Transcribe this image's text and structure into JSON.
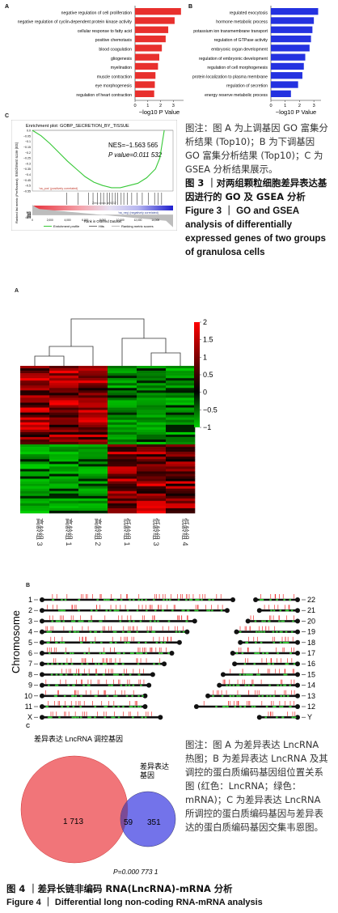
{
  "fig3": {
    "panel_a_letter": "A",
    "panel_b_letter": "B",
    "panel_c_letter": "C",
    "up_terms": [
      "negative regulation of cell proliferation",
      "negative regulation of cyclin-dependent protein kinase activity",
      "cellular response to fatty acid",
      "positive chemotaxis",
      "blood coagulation",
      "gliogenesis",
      "myelination",
      "muscle contraction",
      "eye morphogenesis",
      "regulation of heart contraction"
    ],
    "down_terms": [
      "regulated exocytosis",
      "hormone metabolic process",
      "potassium ion transmembrane transport",
      "regulation of GTPase activity",
      "embryonic organ development",
      "regulation of embryonic development",
      "regulation of cell morphogenesis",
      "protein localization to plasma membrane",
      "regulation of secretion",
      "energy reserve metabolic process"
    ],
    "axis_ticks": [
      "0",
      "1",
      "2",
      "3"
    ],
    "axis_label": "−log10 P Value",
    "gsea_title": "Enrichment plot: GOBP_SECRETION_BY_TISSUE",
    "gsea_nes": "NES=−1.563 565",
    "gsea_p": "P value=0.011 532",
    "gsea_es_ylabel": "Enrichment score (ES)",
    "gsea_rank_ylabel": "Ranked list metric (PreRanked)",
    "gsea_xlabel": "Rank in Ordered Dataset",
    "gsea_pos_label": "'na_pos' (positively correlated)",
    "gsea_neg_label": "'na_neg' (negatively correlated)",
    "gsea_zero_label": "Zero cross at 9217",
    "gsea_es_ticks": [
      "0.0",
      "−0.05",
      "−0.1",
      "−0.15",
      "−0.2",
      "−0.25",
      "−0.3",
      "−0.35",
      "−0.4",
      "−0.45",
      "−0.5",
      "−0.55"
    ],
    "gsea_rank_ticks": [
      "12.5",
      "10.0",
      "7.5",
      "5.0",
      "2.5",
      "0.0",
      "−2.5",
      "−5.0",
      "−7.5",
      "−10.0",
      "−12.5"
    ],
    "gsea_x_ticks": [
      "0",
      "2,000",
      "4,000",
      "6,000",
      "8,000",
      "10,000",
      "12,000",
      "14,000"
    ],
    "gsea_legend": [
      "Enrichment profile",
      "Hits",
      "Ranking metric scores"
    ],
    "caption_note": "图注：图 A 为上调基因 GO 富集分析结果 (Top10)；B 为下调基因 GO 富集分析结果 (Top10)；C 为 GSEA 分析结果展示。",
    "caption_cn": "图 3 ｜对两组颗粒细胞差异表达基因进行的 GO 及 GSEA 分析",
    "caption_en": "Figure 3 ｜ GO and GSEA analysis of differentially expressed genes of two groups of granulosa cells"
  },
  "fig4": {
    "panel_a_letter": "A",
    "panel_b_letter": "B",
    "panel_c_letter": "C",
    "heatmap_samples": [
      "高龄组 3",
      "高龄组 1",
      "高龄组 2",
      "低龄组 1",
      "低龄组 3",
      "低龄组 4"
    ],
    "colorbar_ticks": [
      "2",
      "1.5",
      "1",
      "0.5",
      "0",
      "−0.5",
      "−1"
    ],
    "chromosome_label": "Chromosome",
    "chrom_left": [
      "1",
      "2",
      "3",
      "4",
      "5",
      "6",
      "7",
      "8",
      "9",
      "10",
      "11",
      "X"
    ],
    "chrom_right": [
      "22",
      "21",
      "20",
      "19",
      "18",
      "17",
      "16",
      "15",
      "14",
      "13",
      "12",
      "Y"
    ],
    "venn_left_label": "差异表达 LncRNA 调控基因",
    "venn_right_label_1": "差异表达",
    "venn_right_label_2": "基因",
    "venn_left_only": "1 713",
    "venn_overlap": "59",
    "venn_right_only": "351",
    "venn_p": "P=0.000 773 1",
    "caption_note": "图注：图 A 为差异表达 LncRNA 热图；B 为差异表达 LncRNA 及其调控的蛋白质编码基因组位置关系图 (红色：LncRNA；绿色：mRNA)；C 为差异表达 LncRNA 所调控的蛋白质编码基因与差异表达的蛋白质编码基因交集韦恩图。",
    "caption_cn": "图 4 ｜差异长链非编码 RNA(LncRNA)-mRNA 分析",
    "caption_en": "Figure 4 ｜ Differential long non-coding RNA-mRNA analysis"
  },
  "chart_data": [
    {
      "type": "bar",
      "orientation": "horizontal",
      "categories": [
        "negative regulation of cell proliferation",
        "negative regulation of cyclin-dependent protein kinase activity",
        "cellular response to fatty acid",
        "positive chemotaxis",
        "blood coagulation",
        "gliogenesis",
        "myelination",
        "muscle contraction",
        "eye morphogenesis",
        "regulation of heart contraction"
      ],
      "values": [
        3.6,
        3.1,
        2.6,
        2.4,
        2.1,
        1.9,
        1.8,
        1.6,
        1.55,
        1.5
      ],
      "xlabel": "−log10 P Value",
      "xlim": [
        0,
        3.8
      ],
      "color": "#e8302d"
    },
    {
      "type": "bar",
      "orientation": "horizontal",
      "categories": [
        "regulated exocytosis",
        "hormone metabolic process",
        "potassium ion transmembrane transport",
        "regulation of GTPase activity",
        "embryonic organ development",
        "regulation of embryonic development",
        "regulation of cell morphogenesis",
        "protein localization to plasma membrane",
        "regulation of secretion",
        "energy reserve metabolic process"
      ],
      "values": [
        3.3,
        3.0,
        2.9,
        2.8,
        2.7,
        2.4,
        2.3,
        2.2,
        1.9,
        1.4
      ],
      "xlabel": "−log10 P Value",
      "xlim": [
        0,
        3.5
      ],
      "color": "#2432e0"
    },
    {
      "type": "line",
      "title": "Enrichment plot: GOBP_SECRETION_BY_TISSUE",
      "x": [
        0,
        1000,
        2000,
        3000,
        4000,
        5000,
        6000,
        7000,
        8000,
        9000,
        10000,
        11000,
        12000,
        13000,
        14000,
        14500,
        15000
      ],
      "y": [
        0,
        -0.05,
        -0.12,
        -0.2,
        -0.28,
        -0.35,
        -0.42,
        -0.47,
        -0.5,
        -0.52,
        -0.52,
        -0.5,
        -0.48,
        -0.43,
        -0.35,
        -0.25,
        0
      ],
      "xlabel": "Rank in Ordered Dataset",
      "ylabel": "Enrichment score (ES)",
      "ylim": [
        -0.55,
        0.0
      ],
      "color": "#37c837"
    },
    {
      "type": "heatmap",
      "columns": [
        "高龄组 3",
        "高龄组 1",
        "高龄组 2",
        "低龄组 1",
        "低龄组 3",
        "低龄组 4"
      ],
      "range": [
        -1,
        2
      ],
      "palette": [
        "#00d000",
        "#000000",
        "#ff0000"
      ]
    },
    {
      "type": "venn",
      "sets": [
        "差异表达 LncRNA 调控基因",
        "差异表达基因"
      ],
      "left_only": 1713,
      "overlap": 59,
      "right_only": 351,
      "p_value": "0.000 773 1"
    }
  ]
}
